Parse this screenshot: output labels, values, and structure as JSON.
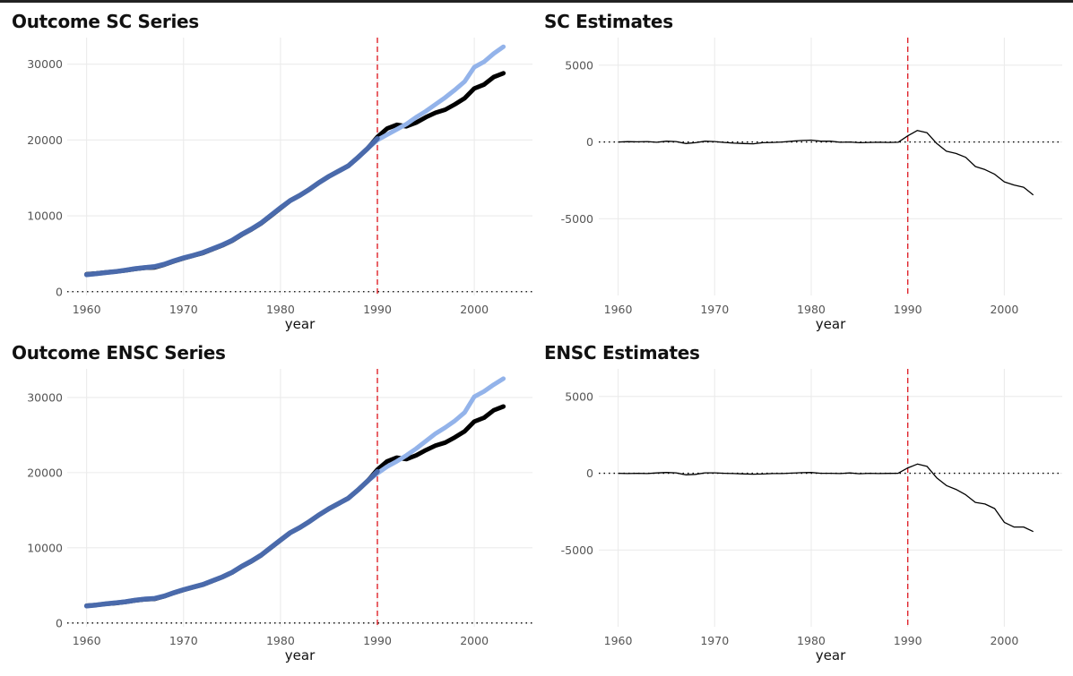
{
  "colors": {
    "treated": "#000000",
    "synthetic": "#93b3ea",
    "overlap": "#4a6aab",
    "treatment_line": "#e0232a",
    "grid": "#ebebeb",
    "zero_line": "#000000",
    "estimate_line": "#000000"
  },
  "chart_data": [
    {
      "title": "Outcome SC Series",
      "type": "line",
      "xlabel": "year",
      "ylabel": "",
      "xlim": [
        1958,
        2006
      ],
      "ylim": [
        -500,
        33500
      ],
      "xticks": [
        1960,
        1970,
        1980,
        1990,
        2000
      ],
      "yticks": [
        0,
        10000,
        20000,
        30000
      ],
      "tick_labels_x": [
        "1960",
        "1970",
        "1980",
        "1990",
        "2000"
      ],
      "tick_labels_y": [
        "0",
        "10000",
        "20000",
        "30000"
      ],
      "treatment_year": 1990,
      "hline": 0,
      "x": [
        1960,
        1961,
        1962,
        1963,
        1964,
        1965,
        1966,
        1967,
        1968,
        1969,
        1970,
        1971,
        1972,
        1973,
        1974,
        1975,
        1976,
        1977,
        1978,
        1979,
        1980,
        1981,
        1982,
        1983,
        1984,
        1985,
        1986,
        1987,
        1988,
        1989,
        1990,
        1991,
        1992,
        1993,
        1994,
        1995,
        1996,
        1997,
        1998,
        1999,
        2000,
        2001,
        2002,
        2003
      ],
      "series": [
        {
          "role": "treated",
          "values": [
            2300,
            2400,
            2550,
            2650,
            2800,
            3000,
            3150,
            3200,
            3550,
            4000,
            4400,
            4750,
            5100,
            5600,
            6100,
            6700,
            7500,
            8200,
            9000,
            10000,
            11000,
            12000,
            12700,
            13500,
            14400,
            15200,
            15900,
            16600,
            17700,
            18900,
            20400,
            21500,
            22000,
            21800,
            22300,
            23000,
            23600,
            24000,
            24700,
            25500,
            26800,
            27300,
            28300,
            28800
          ]
        },
        {
          "role": "synthetic",
          "values": [
            2200,
            2350,
            2500,
            2650,
            2850,
            3050,
            3200,
            3350,
            3650,
            4100,
            4500,
            4800,
            5200,
            5700,
            6200,
            6800,
            7600,
            8300,
            9100,
            10100,
            11100,
            12000,
            12700,
            13500,
            14400,
            15200,
            15900,
            16600,
            17700,
            18900,
            20000,
            20700,
            21400,
            22100,
            23000,
            23800,
            24700,
            25600,
            26600,
            27700,
            29600,
            30300,
            31400,
            32300
          ]
        }
      ]
    },
    {
      "title": "SC Estimates",
      "type": "line",
      "xlabel": "year",
      "ylabel": "",
      "xlim": [
        1958,
        2006
      ],
      "ylim": [
        -10000,
        6800
      ],
      "xticks": [
        1960,
        1970,
        1980,
        1990,
        2000
      ],
      "yticks": [
        -5000,
        0,
        5000
      ],
      "tick_labels_x": [
        "1960",
        "1970",
        "1980",
        "1990",
        "2000"
      ],
      "tick_labels_y": [
        "-5000",
        "0",
        "5000"
      ],
      "treatment_year": 1990,
      "hline": 0,
      "x": [
        1960,
        1961,
        1962,
        1963,
        1964,
        1965,
        1966,
        1967,
        1968,
        1969,
        1970,
        1971,
        1972,
        1973,
        1974,
        1975,
        1976,
        1977,
        1978,
        1979,
        1980,
        1981,
        1982,
        1983,
        1984,
        1985,
        1986,
        1987,
        1988,
        1989,
        1990,
        1991,
        1992,
        1993,
        1994,
        1995,
        1996,
        1997,
        1998,
        1999,
        2000,
        2001,
        2002,
        2003
      ],
      "series": [
        {
          "role": "estimate",
          "values": [
            0,
            20,
            10,
            30,
            -20,
            50,
            30,
            -100,
            -50,
            50,
            30,
            -30,
            -80,
            -100,
            -120,
            -50,
            -30,
            0,
            50,
            100,
            120,
            50,
            50,
            -20,
            0,
            -50,
            -30,
            -20,
            -30,
            -20,
            400,
            750,
            600,
            -100,
            -600,
            -750,
            -1000,
            -1600,
            -1800,
            -2100,
            -2600,
            -2800,
            -2950,
            -3450
          ]
        }
      ]
    },
    {
      "title": "Outcome ENSC Series",
      "type": "line",
      "xlabel": "year",
      "ylabel": "",
      "xlim": [
        1958,
        2006
      ],
      "ylim": [
        -500,
        33800
      ],
      "xticks": [
        1960,
        1970,
        1980,
        1990,
        2000
      ],
      "yticks": [
        0,
        10000,
        20000,
        30000
      ],
      "tick_labels_x": [
        "1960",
        "1970",
        "1980",
        "1990",
        "2000"
      ],
      "tick_labels_y": [
        "0",
        "10000",
        "20000",
        "30000"
      ],
      "treatment_year": 1990,
      "hline": 0,
      "x": [
        1960,
        1961,
        1962,
        1963,
        1964,
        1965,
        1966,
        1967,
        1968,
        1969,
        1970,
        1971,
        1972,
        1973,
        1974,
        1975,
        1976,
        1977,
        1978,
        1979,
        1980,
        1981,
        1982,
        1983,
        1984,
        1985,
        1986,
        1987,
        1988,
        1989,
        1990,
        1991,
        1992,
        1993,
        1994,
        1995,
        1996,
        1997,
        1998,
        1999,
        2000,
        2001,
        2002,
        2003
      ],
      "series": [
        {
          "role": "treated",
          "values": [
            2300,
            2400,
            2550,
            2650,
            2800,
            3000,
            3150,
            3200,
            3550,
            4000,
            4400,
            4750,
            5100,
            5600,
            6100,
            6700,
            7500,
            8200,
            9000,
            10000,
            11000,
            12000,
            12700,
            13500,
            14400,
            15200,
            15900,
            16600,
            17700,
            18900,
            20400,
            21500,
            22000,
            21800,
            22300,
            23000,
            23600,
            24000,
            24700,
            25500,
            26800,
            27300,
            28300,
            28800
          ]
        },
        {
          "role": "synthetic",
          "values": [
            2250,
            2400,
            2550,
            2700,
            2850,
            3050,
            3200,
            3300,
            3600,
            4050,
            4450,
            4800,
            5150,
            5650,
            6150,
            6750,
            7550,
            8250,
            9050,
            10050,
            11050,
            12000,
            12700,
            13500,
            14400,
            15200,
            15900,
            16600,
            17700,
            18900,
            19900,
            20800,
            21500,
            22300,
            23200,
            24200,
            25200,
            26000,
            26900,
            28000,
            30100,
            30800,
            31700,
            32500
          ]
        }
      ]
    },
    {
      "title": "ENSC Estimates",
      "type": "line",
      "xlabel": "year",
      "ylabel": "",
      "xlim": [
        1958,
        2006
      ],
      "ylim": [
        -10000,
        6800
      ],
      "xticks": [
        1960,
        1970,
        1980,
        1990,
        2000
      ],
      "yticks": [
        -5000,
        0,
        5000
      ],
      "tick_labels_x": [
        "1960",
        "1970",
        "1980",
        "1990",
        "2000"
      ],
      "tick_labels_y": [
        "-5000",
        "0",
        "5000"
      ],
      "treatment_year": 1990,
      "hline": 0,
      "x": [
        1960,
        1961,
        1962,
        1963,
        1964,
        1965,
        1966,
        1967,
        1968,
        1969,
        1970,
        1971,
        1972,
        1973,
        1974,
        1975,
        1976,
        1977,
        1978,
        1979,
        1980,
        1981,
        1982,
        1983,
        1984,
        1985,
        1986,
        1987,
        1988,
        1989,
        1990,
        1991,
        1992,
        1993,
        1994,
        1995,
        1996,
        1997,
        1998,
        1999,
        2000,
        2001,
        2002,
        2003
      ],
      "series": [
        {
          "role": "estimate",
          "values": [
            0,
            -20,
            0,
            -20,
            20,
            50,
            30,
            -100,
            -70,
            30,
            30,
            0,
            -20,
            -40,
            -60,
            -50,
            -20,
            -20,
            10,
            40,
            50,
            0,
            0,
            -20,
            20,
            -30,
            0,
            -20,
            -10,
            0,
            350,
            600,
            450,
            -300,
            -800,
            -1050,
            -1400,
            -1900,
            -2000,
            -2300,
            -3200,
            -3500,
            -3500,
            -3800
          ]
        }
      ]
    }
  ]
}
